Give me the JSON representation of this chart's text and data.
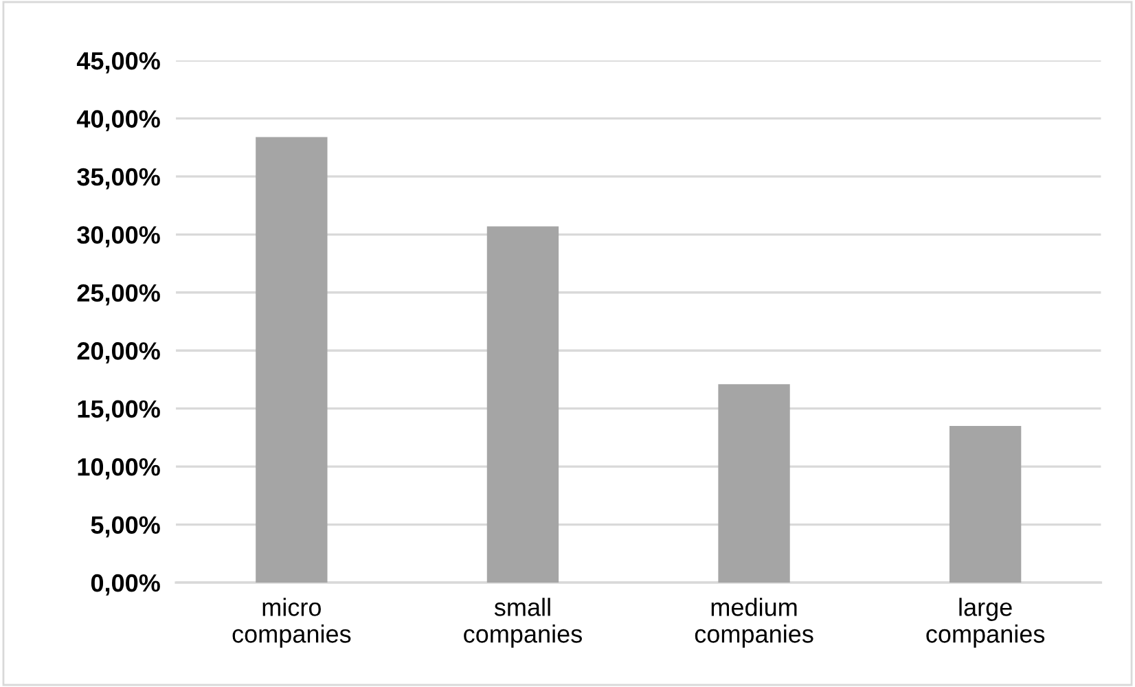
{
  "chart_data": {
    "type": "bar",
    "categories": [
      "micro\ncompanies",
      "small\ncompanies",
      "medium\ncompanies",
      "large\ncompanies"
    ],
    "values": [
      38.4,
      30.7,
      17.1,
      13.5
    ],
    "color": "#a5a5a5",
    "ylim": [
      0,
      45
    ],
    "yticks": [
      {
        "value": 0,
        "label": "0,00%"
      },
      {
        "value": 5,
        "label": "5,00%"
      },
      {
        "value": 10,
        "label": "10,00%"
      },
      {
        "value": 15,
        "label": "15,00%"
      },
      {
        "value": 20,
        "label": "20,00%"
      },
      {
        "value": 25,
        "label": "25,00%"
      },
      {
        "value": 30,
        "label": "30,00%"
      },
      {
        "value": 35,
        "label": "35,00%"
      },
      {
        "value": 40,
        "label": "40,00%"
      },
      {
        "value": 45,
        "label": "45,00%"
      }
    ],
    "grid": "y"
  }
}
